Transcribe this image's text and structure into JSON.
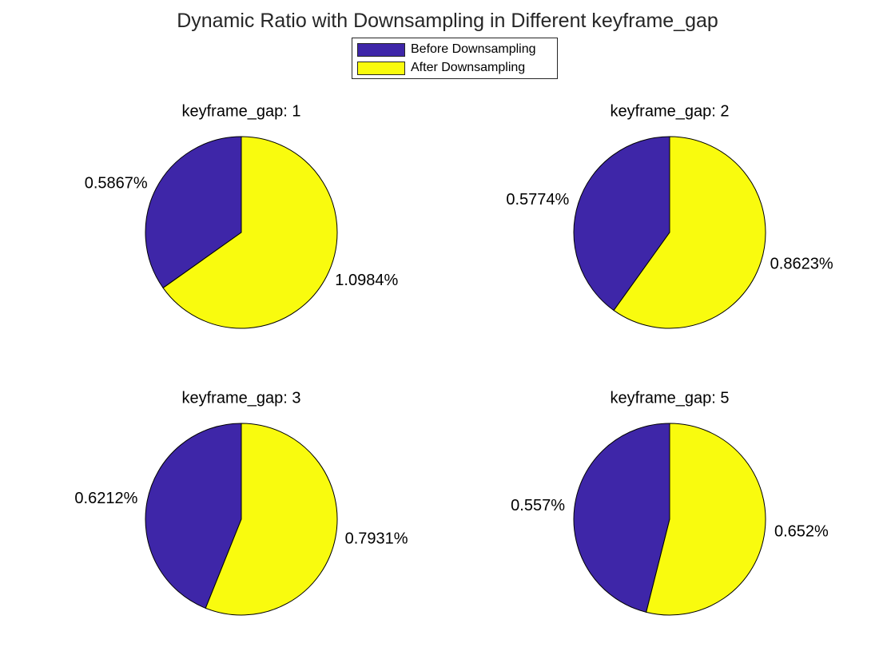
{
  "title": "Dynamic Ratio with Downsampling in Different keyframe_gap",
  "legend": {
    "placement": "top-center",
    "entries": [
      {
        "name": "Before Downsampling",
        "color": "#3e26a8"
      },
      {
        "name": "After Downsampling",
        "color": "#f9fb0e"
      }
    ]
  },
  "chart_data": [
    {
      "type": "pie",
      "title": "keyframe_gap: 1",
      "categories": [
        "Before Downsampling",
        "After Downsampling"
      ],
      "values": [
        0.5867,
        1.0984
      ],
      "labels": [
        "0.5867%",
        "1.0984%"
      ]
    },
    {
      "type": "pie",
      "title": "keyframe_gap: 2",
      "categories": [
        "Before Downsampling",
        "After Downsampling"
      ],
      "values": [
        0.5774,
        0.8623
      ],
      "labels": [
        "0.5774%",
        "0.8623%"
      ]
    },
    {
      "type": "pie",
      "title": "keyframe_gap: 3",
      "categories": [
        "Before Downsampling",
        "After Downsampling"
      ],
      "values": [
        0.6212,
        0.7931
      ],
      "labels": [
        "0.6212%",
        "0.7931%"
      ]
    },
    {
      "type": "pie",
      "title": "keyframe_gap: 5",
      "categories": [
        "Before Downsampling",
        "After Downsampling"
      ],
      "values": [
        0.557,
        0.652
      ],
      "labels": [
        "0.557%",
        "0.652%"
      ]
    }
  ]
}
